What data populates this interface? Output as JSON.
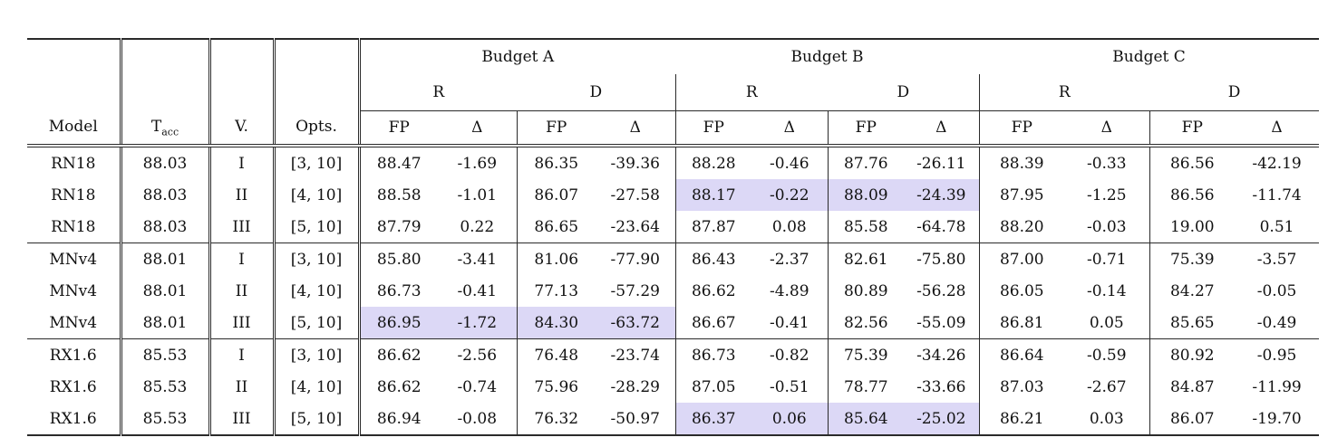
{
  "table": {
    "col_headers": {
      "model": "Model",
      "tacc_base": "T",
      "tacc_sub": "acc",
      "v": "V.",
      "opts": "Opts.",
      "budgets": [
        "Budget A",
        "Budget B",
        "Budget C"
      ],
      "subgroups": [
        "R",
        "D"
      ],
      "metrics": [
        "FP",
        "Δ"
      ]
    },
    "highlight_color": "#dcd8f6",
    "rows": [
      {
        "model": "RN18",
        "tacc": "88.03",
        "v": "I",
        "opts": "[3, 10]",
        "vals": [
          "88.47",
          "-1.69",
          "86.35",
          "-39.36",
          "88.28",
          "-0.46",
          "87.76",
          "-26.11",
          "88.39",
          "-0.33",
          "86.56",
          "-42.19"
        ],
        "highlighted": [],
        "group_end": false
      },
      {
        "model": "RN18",
        "tacc": "88.03",
        "v": "II",
        "opts": "[4, 10]",
        "vals": [
          "88.58",
          "-1.01",
          "86.07",
          "-27.58",
          "88.17",
          "-0.22",
          "88.09",
          "-24.39",
          "87.95",
          "-1.25",
          "86.56",
          "-11.74"
        ],
        "highlighted": [
          4,
          5,
          6,
          7
        ],
        "group_end": false
      },
      {
        "model": "RN18",
        "tacc": "88.03",
        "v": "III",
        "opts": "[5, 10]",
        "vals": [
          "87.79",
          "0.22",
          "86.65",
          "-23.64",
          "87.87",
          "0.08",
          "85.58",
          "-64.78",
          "88.20",
          "-0.03",
          "19.00",
          "0.51"
        ],
        "highlighted": [],
        "group_end": true
      },
      {
        "model": "MNv4",
        "tacc": "88.01",
        "v": "I",
        "opts": "[3, 10]",
        "vals": [
          "85.80",
          "-3.41",
          "81.06",
          "-77.90",
          "86.43",
          "-2.37",
          "82.61",
          "-75.80",
          "87.00",
          "-0.71",
          "75.39",
          "-3.57"
        ],
        "highlighted": [],
        "group_end": false
      },
      {
        "model": "MNv4",
        "tacc": "88.01",
        "v": "II",
        "opts": "[4, 10]",
        "vals": [
          "86.73",
          "-0.41",
          "77.13",
          "-57.29",
          "86.62",
          "-4.89",
          "80.89",
          "-56.28",
          "86.05",
          "-0.14",
          "84.27",
          "-0.05"
        ],
        "highlighted": [],
        "group_end": false
      },
      {
        "model": "MNv4",
        "tacc": "88.01",
        "v": "III",
        "opts": "[5, 10]",
        "vals": [
          "86.95",
          "-1.72",
          "84.30",
          "-63.72",
          "86.67",
          "-0.41",
          "82.56",
          "-55.09",
          "86.81",
          "0.05",
          "85.65",
          "-0.49"
        ],
        "highlighted": [
          0,
          1,
          2,
          3
        ],
        "group_end": true
      },
      {
        "model": "RX1.6",
        "tacc": "85.53",
        "v": "I",
        "opts": "[3, 10]",
        "vals": [
          "86.62",
          "-2.56",
          "76.48",
          "-23.74",
          "86.73",
          "-0.82",
          "75.39",
          "-34.26",
          "86.64",
          "-0.59",
          "80.92",
          "-0.95"
        ],
        "highlighted": [],
        "group_end": false
      },
      {
        "model": "RX1.6",
        "tacc": "85.53",
        "v": "II",
        "opts": "[4, 10]",
        "vals": [
          "86.62",
          "-0.74",
          "75.96",
          "-28.29",
          "87.05",
          "-0.51",
          "78.77",
          "-33.66",
          "87.03",
          "-2.67",
          "84.87",
          "-11.99"
        ],
        "highlighted": [],
        "group_end": false
      },
      {
        "model": "RX1.6",
        "tacc": "85.53",
        "v": "III",
        "opts": "[5, 10]",
        "vals": [
          "86.94",
          "-0.08",
          "76.32",
          "-50.97",
          "86.37",
          "0.06",
          "85.64",
          "-25.02",
          "86.21",
          "0.03",
          "86.07",
          "-19.70"
        ],
        "highlighted": [
          4,
          5,
          6,
          7
        ],
        "group_end": false
      }
    ]
  }
}
